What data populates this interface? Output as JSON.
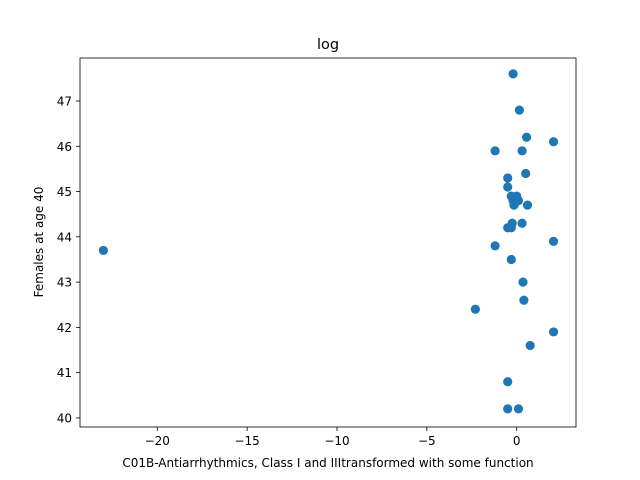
{
  "chart_data": {
    "type": "scatter",
    "title": "log",
    "xlabel": "C01B-Antiarrhythmics, Class I and IIItransformed with some function",
    "ylabel": "Females at age 40",
    "xlim": [
      -24.3,
      3.3
    ],
    "ylim": [
      39.8,
      47.95
    ],
    "xticks": [
      -20,
      -15,
      -10,
      -5,
      0
    ],
    "xtick_labels": [
      "−20",
      "−15",
      "−10",
      "−5",
      "0"
    ],
    "yticks": [
      40,
      41,
      42,
      43,
      44,
      45,
      46,
      47
    ],
    "ytick_labels": [
      "40",
      "41",
      "42",
      "43",
      "44",
      "45",
      "46",
      "47"
    ],
    "grid": false,
    "legend": "none",
    "color": "#1f77b4",
    "points": [
      {
        "x": -23.0,
        "y": 43.7
      },
      {
        "x": -0.2,
        "y": 47.6
      },
      {
        "x": 0.15,
        "y": 46.8
      },
      {
        "x": 0.55,
        "y": 46.2
      },
      {
        "x": 2.05,
        "y": 46.1
      },
      {
        "x": -1.2,
        "y": 45.9
      },
      {
        "x": 0.3,
        "y": 45.9
      },
      {
        "x": 0.5,
        "y": 45.4
      },
      {
        "x": -0.5,
        "y": 45.3
      },
      {
        "x": -0.5,
        "y": 45.1
      },
      {
        "x": -0.3,
        "y": 44.9
      },
      {
        "x": 0.0,
        "y": 44.9
      },
      {
        "x": -0.2,
        "y": 44.8
      },
      {
        "x": 0.1,
        "y": 44.8
      },
      {
        "x": -0.1,
        "y": 44.75
      },
      {
        "x": 0.6,
        "y": 44.7
      },
      {
        "x": -0.15,
        "y": 44.7
      },
      {
        "x": -0.25,
        "y": 44.3
      },
      {
        "x": 0.3,
        "y": 44.3
      },
      {
        "x": -0.5,
        "y": 44.2
      },
      {
        "x": -0.3,
        "y": 44.2
      },
      {
        "x": 2.05,
        "y": 43.9
      },
      {
        "x": -1.2,
        "y": 43.8
      },
      {
        "x": -0.3,
        "y": 43.5
      },
      {
        "x": 0.35,
        "y": 43.0
      },
      {
        "x": 0.4,
        "y": 42.6
      },
      {
        "x": -2.3,
        "y": 42.4
      },
      {
        "x": 2.05,
        "y": 41.9
      },
      {
        "x": 0.75,
        "y": 41.6
      },
      {
        "x": -0.5,
        "y": 40.8
      },
      {
        "x": -0.5,
        "y": 40.2
      },
      {
        "x": 0.1,
        "y": 40.2
      }
    ]
  }
}
